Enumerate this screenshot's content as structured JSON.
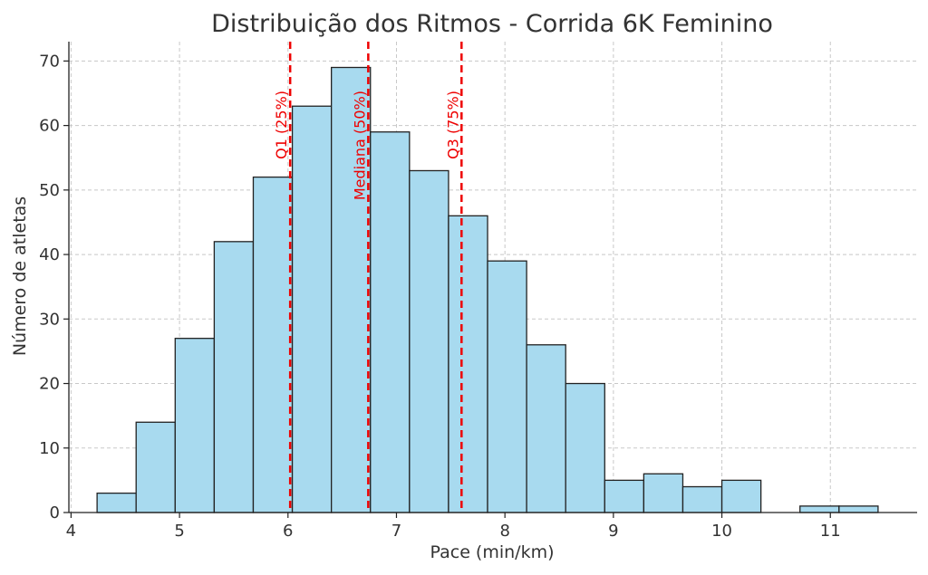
{
  "chart_data": {
    "type": "bar",
    "title": "Distribuição dos Ritmos - Corrida 6K Feminino",
    "xlabel": "Pace (min/km)",
    "ylabel": "Número de atletas",
    "xlim": [
      3.98,
      11.8
    ],
    "ylim": [
      0,
      73
    ],
    "x_ticks": [
      4,
      5,
      6,
      7,
      8,
      9,
      10,
      11
    ],
    "y_ticks": [
      0,
      10,
      20,
      30,
      40,
      50,
      60,
      70
    ],
    "grid": true,
    "bins": [
      {
        "start": 4.24,
        "end": 4.6,
        "count": 3
      },
      {
        "start": 4.6,
        "end": 4.96,
        "count": 14
      },
      {
        "start": 4.96,
        "end": 5.32,
        "count": 27
      },
      {
        "start": 5.32,
        "end": 5.68,
        "count": 42
      },
      {
        "start": 5.68,
        "end": 6.04,
        "count": 52
      },
      {
        "start": 6.04,
        "end": 6.4,
        "count": 63
      },
      {
        "start": 6.4,
        "end": 6.76,
        "count": 69
      },
      {
        "start": 6.76,
        "end": 7.12,
        "count": 59
      },
      {
        "start": 7.12,
        "end": 7.48,
        "count": 53
      },
      {
        "start": 7.48,
        "end": 7.84,
        "count": 46
      },
      {
        "start": 7.84,
        "end": 8.2,
        "count": 39
      },
      {
        "start": 8.2,
        "end": 8.56,
        "count": 26
      },
      {
        "start": 8.56,
        "end": 8.92,
        "count": 20
      },
      {
        "start": 8.92,
        "end": 9.28,
        "count": 5
      },
      {
        "start": 9.28,
        "end": 9.64,
        "count": 6
      },
      {
        "start": 9.64,
        "end": 10.0,
        "count": 4
      },
      {
        "start": 10.0,
        "end": 10.36,
        "count": 5
      },
      {
        "start": 10.36,
        "end": 10.72,
        "count": 0
      },
      {
        "start": 10.72,
        "end": 11.08,
        "count": 1
      },
      {
        "start": 11.08,
        "end": 11.44,
        "count": 1
      }
    ],
    "reference_lines": [
      {
        "label": "Q1 (25%)",
        "x": 6.02
      },
      {
        "label": "Mediana (50%)",
        "x": 6.74
      },
      {
        "label": "Q3 (75%)",
        "x": 7.6
      }
    ],
    "colors": {
      "bar_fill": "#a8daef",
      "bar_edge": "#222222",
      "reference_line": "#ee0000"
    }
  }
}
